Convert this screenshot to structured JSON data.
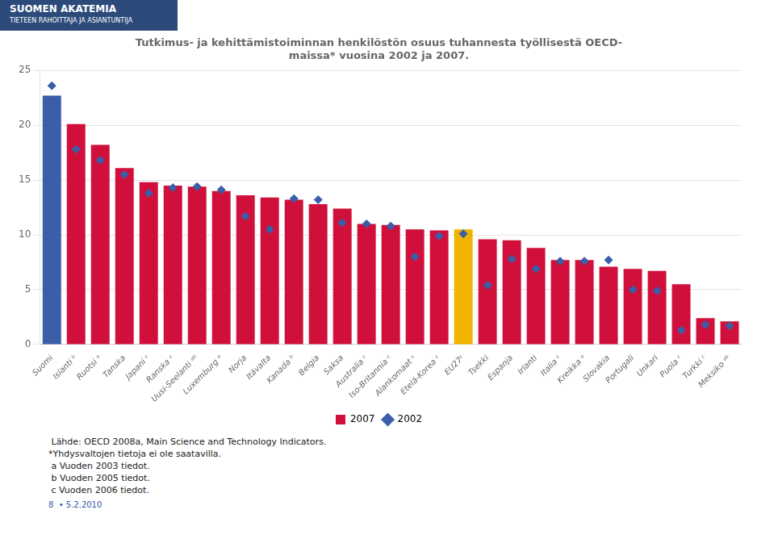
{
  "chart_data": {
    "type": "bar",
    "title": [
      "Tutkimus- ja kehittämistoiminnan henkilöstön osuus tuhannesta työllisestä OECD-",
      "maissa* vuosina 2002 ja 2007."
    ],
    "categories": [
      "Suomi",
      "Islanti ᵇ",
      "Ruotsi ᵃ",
      "Tanska",
      "Japani ᶜ",
      "Ranska ᶜ",
      "Uusi-Seelanti ᵃᵇ",
      "Luxemburg ᵃ",
      "Norja",
      "Itävalta",
      "Kanada ᵇ",
      "Belgia",
      "Saksa",
      "Australia ᶜ",
      "Iso-Britannia ᶜ",
      "Alankomaat ᶜ",
      "Etelä-Korea ᶜ",
      "EU27ᶜ",
      "Tsekki",
      "Espanja",
      "Irlanti",
      "Italia ᶜ",
      "Kreikka ᵃ",
      "Slovakia",
      "Portugali",
      "Unkari",
      "Puola ᶜ",
      "Turkki ᶜ",
      "Meksiko ᵃᵇ"
    ],
    "series": [
      {
        "name": "2007",
        "type": "bar",
        "color": "#d0103a",
        "colors": [
          "#3a5ea8",
          "#d0103a",
          "#d0103a",
          "#d0103a",
          "#d0103a",
          "#d0103a",
          "#d0103a",
          "#d0103a",
          "#d0103a",
          "#d0103a",
          "#d0103a",
          "#d0103a",
          "#d0103a",
          "#d0103a",
          "#d0103a",
          "#d0103a",
          "#d0103a",
          "#f0b400",
          "#d0103a",
          "#d0103a",
          "#d0103a",
          "#d0103a",
          "#d0103a",
          "#d0103a",
          "#d0103a",
          "#d0103a",
          "#d0103a",
          "#d0103a",
          "#d0103a"
        ],
        "values": [
          22.7,
          20.1,
          18.2,
          16.1,
          14.8,
          14.5,
          14.4,
          14.0,
          13.6,
          13.4,
          13.2,
          12.8,
          12.4,
          11.0,
          10.9,
          10.5,
          10.4,
          10.5,
          9.6,
          9.5,
          8.8,
          7.7,
          7.7,
          7.1,
          6.9,
          6.7,
          5.5,
          2.4,
          2.1
        ]
      },
      {
        "name": "2002",
        "type": "scatter",
        "marker": "diamond",
        "color": "#3a5ea8",
        "values": [
          23.6,
          17.8,
          16.8,
          15.5,
          13.8,
          14.3,
          14.4,
          14.1,
          11.7,
          10.5,
          13.3,
          13.2,
          11.1,
          11.0,
          10.8,
          8.0,
          9.9,
          10.1,
          5.4,
          7.8,
          6.9,
          7.6,
          7.6,
          7.7,
          5.0,
          4.9,
          1.3,
          1.8,
          1.7
        ]
      }
    ],
    "ylim": [
      0,
      25
    ],
    "yticks": [
      0,
      5,
      10,
      15,
      20,
      25
    ],
    "grid": true,
    "legend": "bottom",
    "annotations": [
      "SUOMEN AKATEMIA",
      "TIETEEN RAHOITTAJA JA ASIANTUNTIJA",
      " Lähde: OECD 2008a, Main Science and Technology Indicators.",
      "*Yhdysvaltojen tietoja ei ole saatavilla.",
      " a Vuoden 2003 tiedot.",
      " b Vuoden 2005 tiedot.",
      " c Vuoden 2006 tiedot.",
      "8  • 5.2.2010"
    ]
  }
}
